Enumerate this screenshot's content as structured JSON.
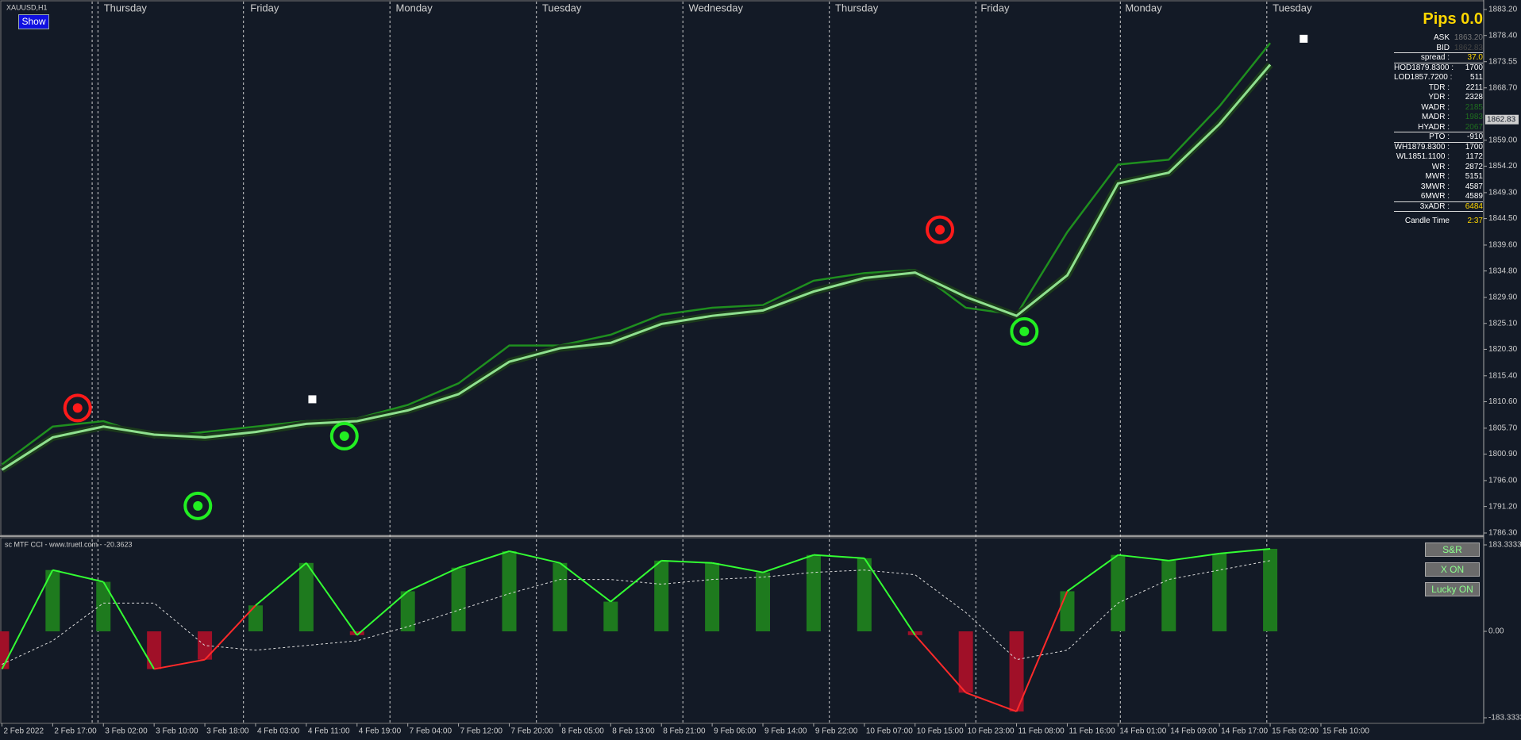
{
  "chart_data": [
    {
      "type": "line",
      "title": "XAUUSD,H1",
      "categories": [
        "2 Feb 2022",
        "2 Feb 17:00",
        "3 Feb 02:00",
        "3 Feb 10:00",
        "3 Feb 18:00",
        "4 Feb 03:00",
        "4 Feb 11:00",
        "4 Feb 19:00",
        "7 Feb 04:00",
        "7 Feb 12:00",
        "7 Feb 20:00",
        "8 Feb 05:00",
        "8 Feb 13:00",
        "8 Feb 21:00",
        "9 Feb 06:00",
        "9 Feb 14:00",
        "9 Feb 22:00",
        "10 Feb 07:00",
        "10 Feb 15:00",
        "10 Feb 23:00",
        "11 Feb 08:00",
        "11 Feb 16:00",
        "14 Feb 01:00",
        "14 Feb 09:00",
        "14 Feb 17:00",
        "15 Feb 02:00",
        "15 Feb 10:00"
      ],
      "series": [
        {
          "color": "#1f8f1f",
          "values": [
            1799,
            1806,
            1807,
            1804,
            1805,
            1806,
            1807,
            1807.5,
            1810,
            1814,
            1821,
            1821,
            1823,
            1826.7,
            1828,
            1828.5,
            1833,
            1834.4,
            1835,
            1828,
            1826.7,
            1842,
            1854.5,
            1855.4,
            1865.3,
            1877,
            null
          ]
        },
        {
          "color": "#8fe08f",
          "values": [
            1798,
            1804,
            1806,
            1804.5,
            1804,
            1805,
            1806.5,
            1807,
            1809,
            1812,
            1818,
            1820.5,
            1821.5,
            1825,
            1826.5,
            1827.5,
            1831,
            1833.5,
            1834.5,
            1830,
            1826.5,
            1834,
            1851,
            1853,
            1862,
            1873,
            null
          ]
        }
      ],
      "day_labels": [
        "Thursday",
        "Friday",
        "Monday",
        "Tuesday",
        "Wednesday",
        "Thursday",
        "Friday",
        "Monday",
        "Tuesday"
      ],
      "ylim": [
        1786.3,
        1883.2
      ],
      "yticks": [
        {
          "value": 1883.2,
          "label": "1883.20"
        },
        {
          "value": 1878.4,
          "label": "1878.40"
        },
        {
          "value": 1873.55,
          "label": "1873.55"
        },
        {
          "value": 1868.7,
          "label": "1868.70"
        },
        {
          "value": 1859.0,
          "label": "1859.00"
        },
        {
          "value": 1854.2,
          "label": "1854.20"
        },
        {
          "value": 1849.3,
          "label": "1849.30"
        },
        {
          "value": 1844.5,
          "label": "1844.50"
        },
        {
          "value": 1839.6,
          "label": "1839.60"
        },
        {
          "value": 1834.8,
          "label": "1834.80"
        },
        {
          "value": 1829.9,
          "label": "1829.90"
        },
        {
          "value": 1825.1,
          "label": "1825.10"
        },
        {
          "value": 1820.3,
          "label": "1820.30"
        },
        {
          "value": 1815.4,
          "label": "1815.40"
        },
        {
          "value": 1810.6,
          "label": "1810.60"
        },
        {
          "value": 1805.7,
          "label": "1805.70"
        },
        {
          "value": 1800.9,
          "label": "1800.90"
        },
        {
          "value": 1796.0,
          "label": "1796.00"
        },
        {
          "value": 1791.2,
          "label": "1791.20"
        },
        {
          "value": 1786.3,
          "label": "1786.30"
        }
      ],
      "current_price": {
        "value": 1862.83,
        "label": "1862.83"
      }
    },
    {
      "type": "bar",
      "title": "sc MTF CCI - www.truetl.com - -20.3623",
      "values": [
        -80,
        130,
        105,
        -80,
        -60,
        55,
        145,
        -8,
        85,
        135,
        170,
        145,
        63,
        150,
        145,
        125,
        162,
        155,
        -8,
        -130,
        -170,
        85,
        162,
        150,
        165,
        175,
        null
      ],
      "positive_color": "#1e7a1e",
      "negative_color": "#a01028",
      "line_positive_color": "#33ff33",
      "line_negative_color": "#ff2a2a",
      "series": [
        {
          "color": "#dddddd",
          "dashed": true,
          "values": [
            -70,
            -20,
            60,
            60,
            -30,
            -40,
            -30,
            -20,
            10,
            45,
            80,
            110,
            110,
            100,
            110,
            115,
            125,
            130,
            120,
            40,
            -60,
            -40,
            60,
            110,
            130,
            150,
            null
          ]
        }
      ],
      "ylim": [
        -183.3333,
        183.3333
      ],
      "yticks": [
        183.3333,
        {
          "value": 0,
          "label": "0.00"
        },
        -183.3333
      ]
    }
  ],
  "info_panel": {
    "title": "Pips 0.0",
    "rows": [
      {
        "label": "ASK",
        "value": "1863.20",
        "color": "#777777"
      },
      {
        "label": "BID",
        "value": "1862.83",
        "color": "#444444"
      },
      {
        "label": "spread :",
        "value": "37.0",
        "color": "#ffd700"
      },
      {
        "label": "HOD1879.8300 :",
        "value": "1700",
        "color": "#ffffff"
      },
      {
        "label": "LOD1857.7200 :",
        "value": "511",
        "color": "#ffffff"
      },
      {
        "label": "TDR :",
        "value": "2211",
        "color": "#ffffff"
      },
      {
        "label": "YDR :",
        "value": "2328",
        "color": "#ffffff"
      },
      {
        "label": "WADR :",
        "value": "2185",
        "color": "#1f6f1f"
      },
      {
        "label": "MADR :",
        "value": "1983",
        "color": "#1f6f1f"
      },
      {
        "label": "HYADR :",
        "value": "2067",
        "color": "#1f6f1f"
      },
      {
        "label": "PTO :",
        "value": "-910",
        "color": "#ffffff"
      },
      {
        "label": "WH1879.8300 :",
        "value": "1700",
        "color": "#ffffff"
      },
      {
        "label": "WL1851.1100 :",
        "value": "1172",
        "color": "#ffffff"
      },
      {
        "label": "WR :",
        "value": "2872",
        "color": "#ffffff"
      },
      {
        "label": "MWR :",
        "value": "5151",
        "color": "#ffffff"
      },
      {
        "label": "3MWR :",
        "value": "4587",
        "color": "#ffffff"
      },
      {
        "label": "6MWR :",
        "value": "4589",
        "color": "#ffffff"
      },
      {
        "label": "3xADR :",
        "value": "6484",
        "color": "#ffd700"
      },
      {
        "label": "Candle Time",
        "value": "2:37",
        "color": "#ffd700"
      }
    ]
  },
  "buttons": {
    "show": "Show",
    "sr": "S&R",
    "xon": "X ON",
    "lucky": "Lucky ON"
  }
}
